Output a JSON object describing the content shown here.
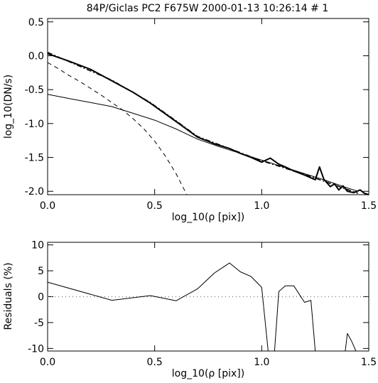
{
  "title": "84P/Giclas PC2 F675W 2000-01-13 10:26:14 # 1",
  "chart_data": [
    {
      "type": "line",
      "xlabel": "log_10(ρ [pix])",
      "ylabel": "log_10(DN/s)",
      "xlim": [
        0.0,
        1.5
      ],
      "ylim": [
        -2.05,
        0.55
      ],
      "x_ticks": [
        "0.0",
        "0.5",
        "1.0",
        "1.5"
      ],
      "y_ticks": [
        "0.5",
        "0.0",
        "-0.5",
        "-1.0",
        "-1.5",
        "-2.0"
      ],
      "grid": false,
      "series": [
        {
          "style": "solid-thick",
          "x": [
            0.0,
            0.1,
            0.2,
            0.3,
            0.4,
            0.48,
            0.6,
            0.7,
            0.78,
            0.85,
            0.9,
            0.95,
            1.0,
            1.04,
            1.08,
            1.11,
            1.15,
            1.2,
            1.25,
            1.27,
            1.29,
            1.32,
            1.34,
            1.36,
            1.38,
            1.4,
            1.43,
            1.46,
            1.48,
            1.5
          ],
          "y": [
            0.03,
            -0.08,
            -0.2,
            -0.37,
            -0.54,
            -0.7,
            -0.97,
            -1.2,
            -1.3,
            -1.37,
            -1.44,
            -1.5,
            -1.57,
            -1.51,
            -1.6,
            -1.64,
            -1.7,
            -1.76,
            -1.83,
            -1.64,
            -1.82,
            -1.93,
            -1.89,
            -1.98,
            -1.92,
            -2.0,
            -2.02,
            -1.98,
            -2.03,
            -2.05
          ]
        },
        {
          "style": "dash-dot",
          "x": [
            0.0,
            0.3,
            0.48,
            0.6,
            0.7,
            0.85,
            1.0,
            1.15,
            1.3,
            1.45
          ],
          "y": [
            0.05,
            -0.36,
            -0.69,
            -0.96,
            -1.19,
            -1.37,
            -1.55,
            -1.7,
            -1.86,
            -2.03
          ]
        },
        {
          "style": "solid-thin",
          "x": [
            0.0,
            0.1,
            0.2,
            0.3,
            0.4,
            0.5,
            0.6,
            0.7,
            0.8,
            0.9,
            1.0,
            1.1,
            1.2,
            1.3,
            1.4,
            1.45
          ],
          "y": [
            -0.57,
            -0.63,
            -0.69,
            -0.75,
            -0.85,
            -0.95,
            -1.08,
            -1.23,
            -1.34,
            -1.44,
            -1.54,
            -1.64,
            -1.74,
            -1.84,
            -1.95,
            -2.0
          ]
        },
        {
          "style": "dashed",
          "x": [
            0.0,
            0.05,
            0.1,
            0.15,
            0.2,
            0.25,
            0.3,
            0.35,
            0.4,
            0.45,
            0.5,
            0.55,
            0.6,
            0.65
          ],
          "y": [
            -0.1,
            -0.19,
            -0.29,
            -0.38,
            -0.48,
            -0.58,
            -0.69,
            -0.8,
            -0.93,
            -1.08,
            -1.26,
            -1.48,
            -1.74,
            -2.05
          ]
        }
      ]
    },
    {
      "type": "line",
      "xlabel": "log_10(ρ [pix])",
      "ylabel": "Residuals (%)",
      "xlim": [
        0.0,
        1.5
      ],
      "ylim": [
        -10.5,
        10.5
      ],
      "x_ticks": [
        "0.0",
        "0.5",
        "1.0",
        "1.5"
      ],
      "y_ticks": [
        "10",
        "5",
        "0",
        "-5",
        "-10"
      ],
      "grid": false,
      "reference_line": {
        "y": 0,
        "style": "dotted"
      },
      "series": [
        {
          "style": "solid-thin",
          "x": [
            0.0,
            0.3,
            0.48,
            0.6,
            0.7,
            0.78,
            0.85,
            0.9,
            0.95,
            1.0,
            1.03,
            1.06,
            1.08,
            1.11,
            1.15,
            1.2,
            1.23,
            1.25,
            1.28
          ],
          "y": [
            2.8,
            -0.7,
            0.2,
            -0.8,
            1.5,
            4.6,
            6.5,
            4.8,
            3.9,
            1.8,
            -10.5,
            -10.5,
            1.0,
            2.1,
            2.1,
            -1.1,
            -0.7,
            -10.5,
            -10.5
          ]
        },
        {
          "style": "solid-thin",
          "x": [
            1.39,
            1.4,
            1.42,
            1.44
          ],
          "y": [
            -10.5,
            -7.1,
            -8.6,
            -10.5
          ]
        }
      ]
    }
  ]
}
